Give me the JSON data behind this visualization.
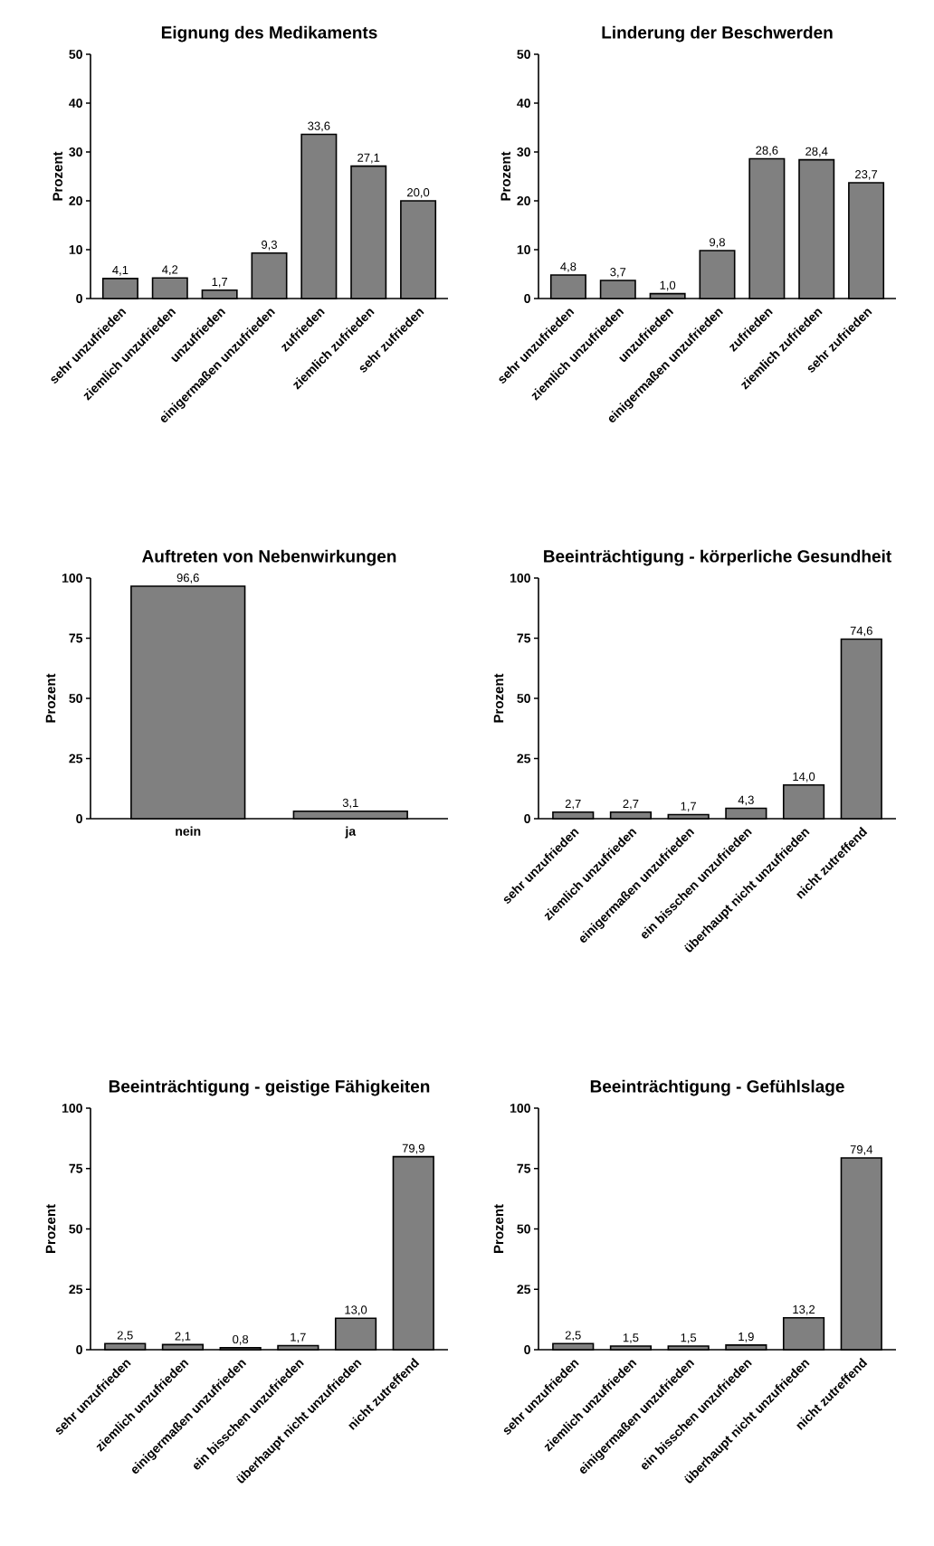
{
  "chart_data": [
    {
      "type": "bar",
      "title": "Eignung des Medikaments",
      "ylabel": "Prozent",
      "categories": [
        "sehr unzufrieden",
        "ziemlich unzufrieden",
        "unzufrieden",
        "einigermaßen unzufrieden",
        "zufrieden",
        "ziemlich zufrieden",
        "sehr zufrieden"
      ],
      "values": [
        4.1,
        4.2,
        1.7,
        9.3,
        33.6,
        27.1,
        20.0
      ],
      "value_labels": [
        "4,1",
        "4,2",
        "1,7",
        "9,3",
        "33,6",
        "27,1",
        "20,0"
      ],
      "color": "#808080",
      "ylim": [
        0,
        50
      ],
      "yticks": [
        0,
        10,
        20,
        30,
        40,
        50
      ]
    },
    {
      "type": "bar",
      "title": "Linderung der Beschwerden",
      "ylabel": "Prozent",
      "categories": [
        "sehr unzufrieden",
        "ziemlich unzufrieden",
        "unzufrieden",
        "einigermaßen unzufrieden",
        "zufrieden",
        "ziemlich zufrieden",
        "sehr zufrieden"
      ],
      "values": [
        4.8,
        3.7,
        1.0,
        9.8,
        28.6,
        28.4,
        23.7
      ],
      "value_labels": [
        "4,8",
        "3,7",
        "1,0",
        "9,8",
        "28,6",
        "28,4",
        "23,7"
      ],
      "color": "#808080",
      "ylim": [
        0,
        50
      ],
      "yticks": [
        0,
        10,
        20,
        30,
        40,
        50
      ]
    },
    {
      "type": "bar",
      "title": "Auftreten von Nebenwirkungen",
      "ylabel": "Prozent",
      "categories": [
        "nein",
        "ja"
      ],
      "values": [
        96.6,
        3.1
      ],
      "value_labels": [
        "96,6",
        "3,1"
      ],
      "color": "#808080",
      "ylim": [
        0,
        100
      ],
      "yticks": [
        0,
        25,
        50,
        75,
        100
      ]
    },
    {
      "type": "bar",
      "title": "Beeinträchtigung - körperliche Gesundheit",
      "ylabel": "Prozent",
      "categories": [
        "sehr unzufrieden",
        "ziemlich unzufrieden",
        "einigermaßen unzufrieden",
        "ein bisschen unzufrieden",
        "überhaupt nicht unzufrieden",
        "nicht zutreffend"
      ],
      "values": [
        2.7,
        2.7,
        1.7,
        4.3,
        14.0,
        74.6
      ],
      "value_labels": [
        "2,7",
        "2,7",
        "1,7",
        "4,3",
        "14,0",
        "74,6"
      ],
      "color": "#808080",
      "ylim": [
        0,
        100
      ],
      "yticks": [
        0,
        25,
        50,
        75,
        100
      ]
    },
    {
      "type": "bar",
      "title": "Beeinträchtigung - geistige Fähigkeiten",
      "ylabel": "Prozent",
      "categories": [
        "sehr unzufrieden",
        "ziemlich unzufrieden",
        "einigermaßen unzufrieden",
        "ein bisschen unzufrieden",
        "überhaupt nicht unzufrieden",
        "nicht zutreffend"
      ],
      "values": [
        2.5,
        2.1,
        0.8,
        1.7,
        13.0,
        79.9
      ],
      "value_labels": [
        "2,5",
        "2,1",
        "0,8",
        "1,7",
        "13,0",
        "79,9"
      ],
      "color": "#808080",
      "ylim": [
        0,
        100
      ],
      "yticks": [
        0,
        25,
        50,
        75,
        100
      ]
    },
    {
      "type": "bar",
      "title": "Beeinträchtigung - Gefühlslage",
      "ylabel": "Prozent",
      "categories": [
        "sehr unzufrieden",
        "ziemlich unzufrieden",
        "einigermaßen unzufrieden",
        "ein bisschen unzufrieden",
        "überhaupt nicht unzufrieden",
        "nicht zutreffend"
      ],
      "values": [
        2.5,
        1.5,
        1.5,
        1.9,
        13.2,
        79.4
      ],
      "value_labels": [
        "2,5",
        "1,5",
        "1,5",
        "1,9",
        "13,2",
        "79,4"
      ],
      "color": "#808080",
      "ylim": [
        0,
        100
      ],
      "yticks": [
        0,
        25,
        50,
        75,
        100
      ]
    }
  ]
}
